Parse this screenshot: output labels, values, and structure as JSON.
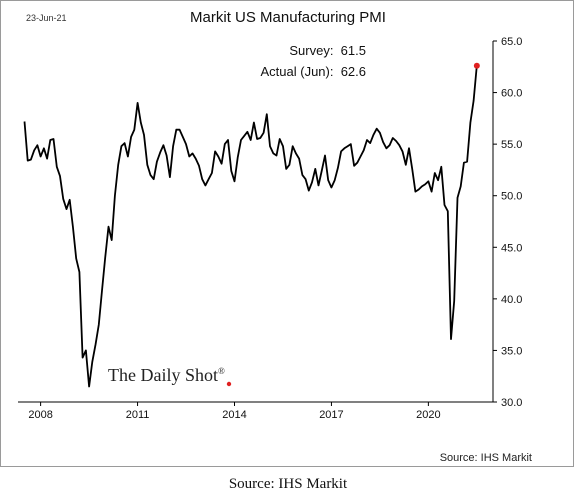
{
  "header": {
    "date_stamp": "23-Jun-21",
    "title": "Markit US Manufacturing PMI"
  },
  "annotations": {
    "survey": "Survey:  61.5",
    "actual": "Actual (Jun):  62.6"
  },
  "watermark": {
    "text": "The Daily Shot",
    "mark": "®"
  },
  "chart_source": "Source: IHS Markit",
  "page_source": "Source: IHS Markit",
  "colors": {
    "line": "#000000",
    "last_point": "#e02020",
    "frame": "#9a9a9a"
  },
  "chart_data": {
    "type": "line",
    "title": "Markit US Manufacturing PMI",
    "xlabel": "",
    "ylabel": "",
    "xlim": [
      2007.3,
      2022.0
    ],
    "ylim": [
      30.0,
      65.0
    ],
    "y_ticks": [
      "30.0",
      "35.0",
      "40.0",
      "45.0",
      "50.0",
      "55.0",
      "60.0",
      "65.0"
    ],
    "y_tick_values": [
      30,
      35,
      40,
      45,
      50,
      55,
      60,
      65
    ],
    "x_ticks": [
      "2008",
      "2011",
      "2014",
      "2017",
      "2020"
    ],
    "x_tick_values": [
      2008,
      2011,
      2014,
      2017,
      2020
    ],
    "grid": false,
    "series": [
      {
        "x": [
          2007.5,
          2007.6,
          2007.7,
          2007.8,
          2007.9,
          2008.0,
          2008.1,
          2008.2,
          2008.3,
          2008.4,
          2008.5,
          2008.6,
          2008.7,
          2008.8,
          2008.9,
          2009.0,
          2009.1,
          2009.2,
          2009.3,
          2009.4,
          2009.5,
          2009.6,
          2009.7,
          2009.8,
          2009.9,
          2010.0,
          2010.1,
          2010.2,
          2010.3,
          2010.4,
          2010.5,
          2010.6,
          2010.7,
          2010.8,
          2010.9,
          2011.0,
          2011.1,
          2011.2,
          2011.3,
          2011.4,
          2011.5,
          2011.6,
          2011.7,
          2011.8,
          2011.9,
          2012.0,
          2012.1,
          2012.2,
          2012.3,
          2012.4,
          2012.5,
          2012.6,
          2012.7,
          2012.8,
          2012.9,
          2013.0,
          2013.1,
          2013.2,
          2013.3,
          2013.4,
          2013.5,
          2013.6,
          2013.7,
          2013.8,
          2013.9,
          2014.0,
          2014.1,
          2014.2,
          2014.3,
          2014.4,
          2014.5,
          2014.6,
          2014.7,
          2014.8,
          2014.9,
          2015.0,
          2015.1,
          2015.2,
          2015.3,
          2015.4,
          2015.5,
          2015.6,
          2015.7,
          2015.8,
          2015.9,
          2016.0,
          2016.1,
          2016.2,
          2016.3,
          2016.4,
          2016.5,
          2016.6,
          2016.7,
          2016.8,
          2016.9,
          2017.0,
          2017.1,
          2017.2,
          2017.3,
          2017.4,
          2017.5,
          2017.6,
          2017.7,
          2017.8,
          2017.9,
          2018.0,
          2018.1,
          2018.2,
          2018.3,
          2018.4,
          2018.5,
          2018.6,
          2018.7,
          2018.8,
          2018.9,
          2019.0,
          2019.1,
          2019.2,
          2019.3,
          2019.4,
          2019.5,
          2019.6,
          2019.7,
          2019.8,
          2019.9,
          2020.0,
          2020.1,
          2020.2,
          2020.3,
          2020.4,
          2020.5,
          2020.6,
          2020.7,
          2020.8,
          2020.9,
          2021.0,
          2021.1,
          2021.2,
          2021.3,
          2021.4,
          2021.5
        ],
        "values": [
          57.2,
          53.4,
          53.5,
          54.4,
          54.9,
          53.8,
          54.6,
          53.6,
          55.4,
          55.5,
          52.8,
          51.9,
          49.7,
          48.7,
          49.6,
          47.0,
          43.9,
          42.6,
          34.3,
          35.0,
          31.5,
          33.9,
          35.6,
          37.5,
          40.8,
          44.0,
          47.0,
          45.7,
          50.0,
          53.0,
          54.8,
          55.1,
          53.8,
          55.7,
          56.4,
          59.0,
          57.1,
          55.9,
          53.0,
          52.0,
          51.6,
          53.3,
          54.2,
          54.9,
          53.9,
          51.8,
          54.8,
          56.4,
          56.4,
          55.7,
          55.0,
          53.8,
          54.1,
          53.6,
          52.9,
          51.6,
          51.0,
          51.6,
          52.2,
          54.3,
          53.8,
          53.1,
          55.0,
          55.4,
          52.4,
          51.4,
          53.7,
          55.4,
          55.8,
          56.2,
          55.4,
          57.1,
          55.5,
          55.6,
          56.1,
          57.9,
          54.8,
          54.1,
          53.9,
          55.5,
          54.8,
          52.6,
          53.0,
          54.8,
          54.1,
          53.6,
          52.0,
          51.6,
          50.5,
          51.3,
          52.6,
          51.0,
          52.4,
          53.9,
          51.5,
          50.8,
          51.5,
          52.7,
          54.3,
          54.6,
          54.8,
          55.0,
          52.9,
          53.2,
          53.8,
          54.4,
          55.4,
          55.1,
          55.9,
          56.5,
          56.1,
          55.2,
          54.6,
          54.9,
          55.6,
          55.3,
          54.9,
          54.3,
          53.0,
          54.6,
          52.6,
          50.4,
          50.6,
          50.9,
          51.1,
          51.4,
          50.4,
          52.2,
          51.5,
          52.8,
          49.1,
          48.5,
          36.1,
          39.8,
          49.8,
          50.9,
          53.2,
          53.3,
          57.1,
          59.2,
          62.6
        ],
        "last_point": {
          "x": 2021.5,
          "y": 62.6
        }
      }
    ]
  }
}
